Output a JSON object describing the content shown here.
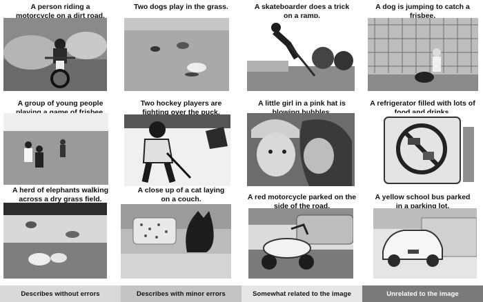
{
  "captions": [
    {
      "line1": "A person riding a",
      "line2": "motorcycle on a dirt road."
    },
    {
      "line1": "Two dogs play in the grass.",
      "line2": ""
    },
    {
      "line1": "A skateboarder does a trick",
      "line2": "on a ramp."
    },
    {
      "line1": "A dog is jumping to catch a",
      "line2": "frisbee."
    },
    {
      "line1": "A group of young people",
      "line2": "playing a game of frisbee."
    },
    {
      "line1": "Two hockey players are",
      "line2": "fighting over the puck."
    },
    {
      "line1": "A little girl in a pink hat is",
      "line2": "blowing bubbles."
    },
    {
      "line1": "A refrigerator filled with lots of",
      "line2": "food and drinks."
    },
    {
      "line1": "A herd of elephants walking",
      "line2": "across a dry grass field."
    },
    {
      "line1": "A close up of a cat laying",
      "line2": "on a couch."
    },
    {
      "line1": "A red motorcycle parked on the",
      "line2": "side of the road."
    },
    {
      "line1": "A yellow school bus parked",
      "line2": "in a parking lot."
    }
  ],
  "legend": [
    {
      "label": "Describes without errors",
      "color": "#d9d9d9",
      "text_color": "#111111"
    },
    {
      "label": "Describes with minor errors",
      "color": "#c4c4c4",
      "text_color": "#111111"
    },
    {
      "label": "Somewhat related to the image",
      "color": "#e6e6e6",
      "text_color": "#111111"
    },
    {
      "label": "Unrelated to the image",
      "color": "#7a7a7a",
      "text_color": "#ffffff"
    }
  ]
}
